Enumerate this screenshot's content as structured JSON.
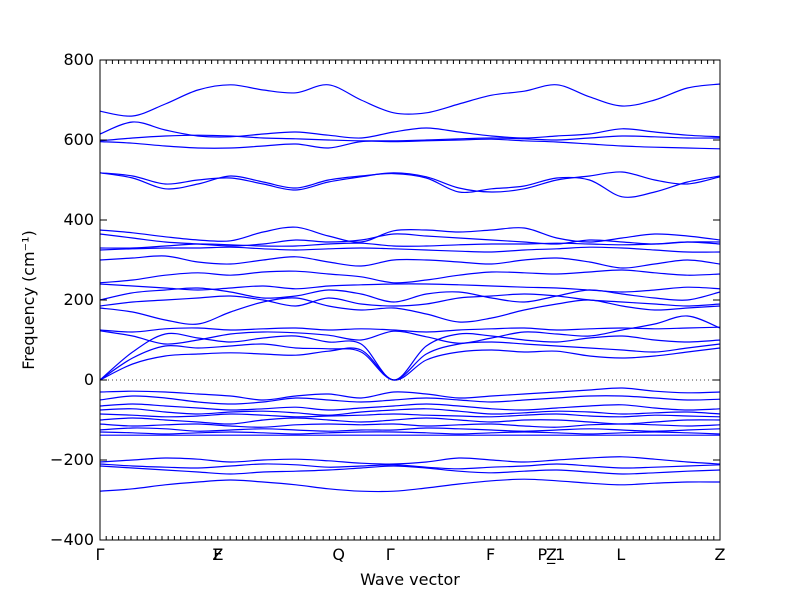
{
  "chart_data": {
    "type": "line",
    "title": "",
    "xlabel": "Wave vector",
    "ylabel": "Frequency (cm⁻¹)",
    "ylim": [
      -400,
      800
    ],
    "yticks": [
      -400,
      -200,
      0,
      200,
      400,
      600,
      800
    ],
    "xlim": [
      0,
      1
    ],
    "x_high_symmetry": [
      {
        "label": "Γ",
        "x": 0.0
      },
      {
        "label": "F",
        "x": 0.19
      },
      {
        "label": "Z",
        "x": 0.19
      },
      {
        "label": "Q",
        "x": 0.385
      },
      {
        "label": "Γ",
        "x": 0.468
      },
      {
        "label": "F",
        "x": 0.63
      },
      {
        "label": "P_1",
        "x": 0.728
      },
      {
        "label": "Z",
        "x": 0.728
      },
      {
        "label": "L",
        "x": 0.84
      },
      {
        "label": "Z",
        "x": 1.0
      }
    ],
    "zero_line": true,
    "grid": false,
    "legend": "none",
    "line_color": "#0000ff",
    "x": [
      0.0,
      0.0526,
      0.1053,
      0.1579,
      0.2105,
      0.2632,
      0.3158,
      0.3684,
      0.4211,
      0.4737,
      0.5263,
      0.5789,
      0.6316,
      0.6842,
      0.7368,
      0.7895,
      0.8421,
      0.8947,
      0.9474,
      1.0
    ],
    "series": [
      {
        "values": [
          672,
          660,
          690,
          725,
          738,
          725,
          718,
          738,
          700,
          668,
          668,
          690,
          712,
          722,
          738,
          708,
          685,
          700,
          730,
          740
        ]
      },
      {
        "values": [
          615,
          645,
          625,
          610,
          608,
          615,
          620,
          612,
          605,
          620,
          630,
          620,
          610,
          605,
          610,
          615,
          628,
          620,
          612,
          608
        ]
      },
      {
        "values": [
          598,
          605,
          610,
          612,
          610,
          605,
          603,
          600,
          598,
          598,
          600,
          603,
          605,
          603,
          600,
          605,
          610,
          608,
          605,
          605
        ]
      },
      {
        "values": [
          596,
          592,
          585,
          580,
          580,
          585,
          590,
          580,
          596,
          596,
          598,
          600,
          602,
          598,
          595,
          590,
          585,
          582,
          580,
          578
        ]
      },
      {
        "values": [
          518,
          505,
          478,
          490,
          510,
          495,
          480,
          500,
          510,
          516,
          505,
          470,
          478,
          485,
          505,
          500,
          458,
          470,
          495,
          510
        ]
      },
      {
        "values": [
          518,
          510,
          490,
          500,
          505,
          490,
          475,
          495,
          508,
          518,
          508,
          480,
          470,
          478,
          500,
          510,
          520,
          500,
          490,
          508
        ]
      },
      {
        "values": [
          375,
          368,
          358,
          350,
          348,
          370,
          382,
          360,
          345,
          373,
          375,
          370,
          375,
          380,
          355,
          345,
          355,
          365,
          360,
          350
        ]
      },
      {
        "values": [
          365,
          355,
          345,
          340,
          335,
          340,
          350,
          345,
          350,
          365,
          360,
          355,
          350,
          345,
          340,
          350,
          345,
          340,
          345,
          345
        ]
      },
      {
        "values": [
          330,
          330,
          335,
          340,
          338,
          335,
          335,
          340,
          342,
          335,
          335,
          338,
          340,
          340,
          342,
          340,
          338,
          340,
          345,
          340
        ]
      },
      {
        "values": [
          325,
          328,
          330,
          330,
          332,
          328,
          325,
          328,
          330,
          328,
          325,
          322,
          320,
          325,
          328,
          332,
          330,
          325,
          320,
          320
        ]
      },
      {
        "values": [
          300,
          305,
          310,
          295,
          290,
          300,
          308,
          295,
          285,
          300,
          300,
          295,
          290,
          300,
          305,
          295,
          280,
          290,
          300,
          290
        ]
      },
      {
        "values": [
          243,
          250,
          262,
          268,
          262,
          270,
          272,
          265,
          258,
          243,
          250,
          262,
          270,
          268,
          265,
          270,
          275,
          268,
          262,
          265
        ]
      },
      {
        "values": [
          240,
          235,
          230,
          225,
          230,
          235,
          228,
          235,
          238,
          240,
          240,
          238,
          235,
          232,
          230,
          225,
          220,
          225,
          232,
          228
        ]
      },
      {
        "values": [
          200,
          218,
          225,
          230,
          220,
          205,
          210,
          225,
          215,
          195,
          215,
          220,
          205,
          195,
          210,
          225,
          215,
          205,
          200,
          220
        ]
      },
      {
        "values": [
          185,
          195,
          200,
          205,
          210,
          200,
          185,
          205,
          190,
          185,
          190,
          205,
          210,
          215,
          210,
          200,
          195,
          190,
          185,
          190
        ]
      },
      {
        "values": [
          180,
          170,
          150,
          140,
          170,
          195,
          205,
          185,
          175,
          180,
          165,
          145,
          155,
          175,
          190,
          200,
          185,
          175,
          180,
          185
        ]
      },
      {
        "values": [
          125,
          120,
          128,
          130,
          125,
          128,
          130,
          125,
          128,
          125,
          120,
          125,
          128,
          130,
          125,
          128,
          130,
          128,
          130,
          132
        ]
      },
      {
        "values": [
          123,
          110,
          90,
          100,
          115,
          120,
          118,
          112,
          100,
          122,
          108,
          92,
          105,
          120,
          115,
          110,
          125,
          140,
          160,
          130
        ]
      },
      {
        "values": [
          0,
          70,
          115,
          105,
          95,
          105,
          110,
          95,
          90,
          0,
          85,
          115,
          110,
          100,
          95,
          105,
          110,
          100,
          95,
          100
        ]
      },
      {
        "values": [
          0,
          55,
          85,
          80,
          85,
          90,
          80,
          78,
          70,
          0,
          65,
          90,
          95,
          90,
          85,
          80,
          75,
          70,
          80,
          90
        ]
      },
      {
        "values": [
          0,
          40,
          60,
          65,
          68,
          65,
          62,
          72,
          75,
          0,
          50,
          70,
          75,
          70,
          72,
          60,
          55,
          60,
          70,
          80
        ]
      },
      {
        "values": [
          -30,
          -28,
          -30,
          -35,
          -40,
          -50,
          -40,
          -35,
          -45,
          -30,
          -35,
          -45,
          -40,
          -35,
          -30,
          -25,
          -20,
          -28,
          -32,
          -30
        ]
      },
      {
        "values": [
          -50,
          -40,
          -45,
          -55,
          -60,
          -55,
          -45,
          -50,
          -55,
          -50,
          -45,
          -50,
          -55,
          -50,
          -45,
          -40,
          -40,
          -45,
          -50,
          -48
        ]
      },
      {
        "values": [
          -65,
          -60,
          -65,
          -70,
          -75,
          -72,
          -68,
          -75,
          -70,
          -65,
          -60,
          -65,
          -72,
          -75,
          -70,
          -65,
          -62,
          -70,
          -75,
          -72
        ]
      },
      {
        "values": [
          -75,
          -72,
          -80,
          -85,
          -80,
          -78,
          -82,
          -88,
          -80,
          -75,
          -72,
          -78,
          -85,
          -82,
          -78,
          -80,
          -85,
          -82,
          -80,
          -85
        ]
      },
      {
        "values": [
          -85,
          -88,
          -92,
          -90,
          -85,
          -88,
          -92,
          -90,
          -88,
          -85,
          -88,
          -90,
          -92,
          -88,
          -85,
          -90,
          -92,
          -88,
          -90,
          -92
        ]
      },
      {
        "values": [
          -100,
          -95,
          -100,
          -105,
          -110,
          -100,
          -95,
          -100,
          -105,
          -100,
          -95,
          -100,
          -105,
          -100,
          -100,
          -105,
          -110,
          -105,
          -100,
          -100
        ]
      },
      {
        "values": [
          -110,
          -115,
          -112,
          -110,
          -115,
          -118,
          -112,
          -110,
          -112,
          -110,
          -115,
          -112,
          -110,
          -115,
          -118,
          -112,
          -110,
          -112,
          -115,
          -112
        ]
      },
      {
        "values": [
          -125,
          -120,
          -122,
          -128,
          -125,
          -122,
          -125,
          -128,
          -125,
          -125,
          -120,
          -122,
          -125,
          -128,
          -125,
          -122,
          -125,
          -128,
          -125,
          -122
        ]
      },
      {
        "values": [
          -130,
          -132,
          -135,
          -132,
          -130,
          -132,
          -135,
          -132,
          -130,
          -130,
          -132,
          -135,
          -132,
          -130,
          -132,
          -135,
          -132,
          -130,
          -132,
          -135
        ]
      },
      {
        "values": [
          -138,
          -138,
          -138,
          -138,
          -138,
          -138,
          -138,
          -138,
          -138,
          -138,
          -138,
          -138,
          -138,
          -138,
          -138,
          -138,
          -138,
          -138,
          -138,
          -138
        ]
      },
      {
        "values": [
          -205,
          -200,
          -195,
          -198,
          -205,
          -200,
          -198,
          -202,
          -208,
          -210,
          -205,
          -195,
          -200,
          -205,
          -200,
          -195,
          -192,
          -198,
          -205,
          -210
        ]
      },
      {
        "values": [
          -210,
          -215,
          -218,
          -220,
          -215,
          -210,
          -212,
          -218,
          -215,
          -212,
          -218,
          -222,
          -218,
          -215,
          -210,
          -215,
          -220,
          -218,
          -215,
          -212
        ]
      },
      {
        "values": [
          -215,
          -220,
          -225,
          -230,
          -235,
          -230,
          -228,
          -225,
          -220,
          -215,
          -220,
          -228,
          -232,
          -228,
          -225,
          -230,
          -235,
          -232,
          -228,
          -225
        ]
      },
      {
        "values": [
          -278,
          -272,
          -262,
          -255,
          -250,
          -255,
          -262,
          -272,
          -278,
          -278,
          -270,
          -260,
          -252,
          -248,
          -252,
          -258,
          -262,
          -258,
          -255,
          -255
        ]
      }
    ]
  }
}
